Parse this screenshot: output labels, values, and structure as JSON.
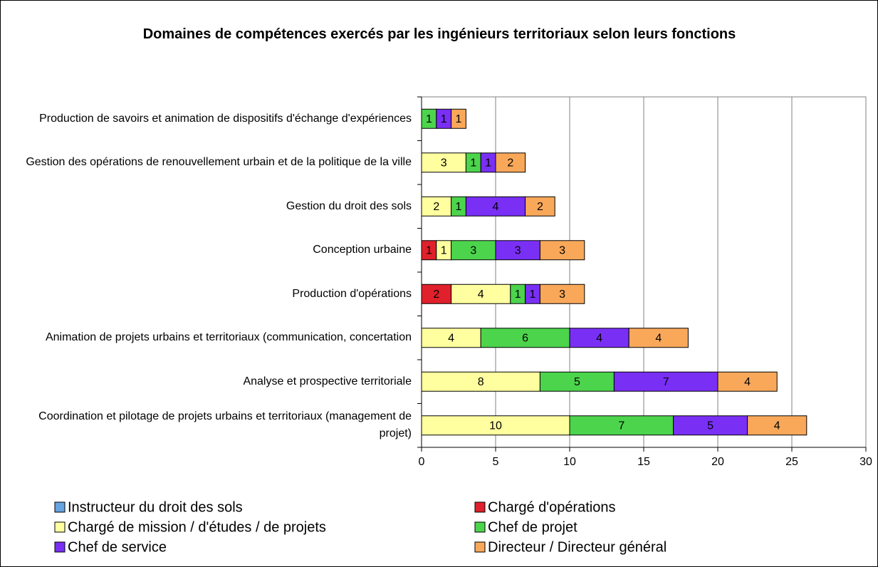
{
  "chart_data": {
    "type": "stacked-barh",
    "title": "Domaines de compétences exercés par les ingénieurs territoriaux selon leurs fonctions",
    "categories": [
      "Production de savoirs et animation de dispositifs d'échange d'expériences",
      "Gestion des opérations de renouvellement urbain et de la politique de la ville",
      "Gestion du droit des sols",
      "Conception urbaine",
      "Production d'opérations",
      "Animation de projets urbains et territoriaux (communication, concertation",
      "Analyse et prospective territoriale",
      "Coordination et pilotage de projets urbains et territoriaux (management de projet)"
    ],
    "series": [
      {
        "name": "Instructeur du droit des sols",
        "color": "#66a3e0",
        "values": [
          0,
          0,
          0,
          0,
          0,
          0,
          0,
          0
        ]
      },
      {
        "name": "Chargé d'opérations",
        "color": "#e0202b",
        "values": [
          0,
          0,
          0,
          1,
          2,
          0,
          0,
          0
        ]
      },
      {
        "name": "Chargé de mission / d'études / de projets",
        "color": "#ffffa0",
        "values": [
          0,
          3,
          2,
          1,
          4,
          4,
          8,
          10
        ]
      },
      {
        "name": "Chef de projet",
        "color": "#4cd44c",
        "values": [
          1,
          1,
          1,
          3,
          1,
          6,
          5,
          7
        ]
      },
      {
        "name": "Chef de service",
        "color": "#7a2ff5",
        "values": [
          1,
          1,
          4,
          3,
          1,
          4,
          7,
          5
        ]
      },
      {
        "name": "Directeur / Directeur général",
        "color": "#f9a85a",
        "values": [
          1,
          2,
          2,
          3,
          3,
          4,
          4,
          4
        ]
      }
    ],
    "xlim": [
      0,
      30
    ],
    "xticks": [
      0,
      5,
      10,
      15,
      20,
      25,
      30
    ],
    "grid": true
  }
}
